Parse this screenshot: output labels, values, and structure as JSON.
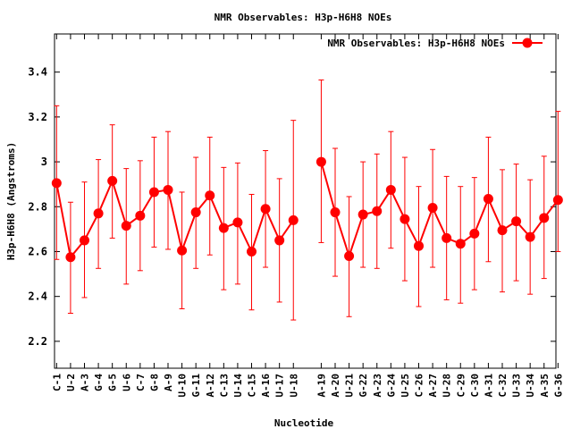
{
  "chart_data": {
    "type": "line",
    "title": "NMR Observables: H3p-H6H8 NOEs",
    "xlabel": "Nucleotide",
    "ylabel": "H3p-H6H8 (Angstroms)",
    "ylim": [
      2.08,
      3.57
    ],
    "yticks": [
      2.2,
      2.4,
      2.6,
      2.8,
      3,
      3.2,
      3.4
    ],
    "ytick_labels": [
      "2.2",
      "2.4",
      "2.6",
      "2.8",
      "3",
      "3.2",
      "3.4"
    ],
    "xlim": [
      0.85,
      36.85
    ],
    "grid": false,
    "legend_position": "top-right",
    "categories": [
      "C-1",
      "U-2",
      "A-3",
      "G-4",
      "G-5",
      "U-6",
      "C-7",
      "G-8",
      "A-9",
      "U-10",
      "G-11",
      "A-12",
      "C-13",
      "U-14",
      "C-15",
      "A-16",
      "U-17",
      "U-18",
      "A-19",
      "A-20",
      "U-21",
      "G-22",
      "A-23",
      "G-24",
      "U-25",
      "C-26",
      "A-27",
      "U-28",
      "C-29",
      "C-30",
      "A-31",
      "C-32",
      "U-33",
      "U-34",
      "A-35",
      "G-36"
    ],
    "x": [
      1,
      2,
      3,
      4,
      5,
      6,
      7,
      8,
      9,
      10,
      11,
      12,
      13,
      14,
      15,
      16,
      17,
      18,
      20,
      21,
      22,
      23,
      24,
      25,
      26,
      27,
      28,
      29,
      30,
      31,
      32,
      33,
      34,
      35,
      36,
      37
    ],
    "series": [
      {
        "name": "NMR Observables: H3p-H6H8 NOEs",
        "color": "#ff0000",
        "segments": [
          [
            0,
            17
          ],
          [
            18,
            35
          ]
        ],
        "values": [
          2.905,
          2.575,
          2.65,
          2.77,
          2.915,
          2.715,
          2.76,
          2.865,
          2.875,
          2.605,
          2.775,
          2.85,
          2.705,
          2.73,
          2.6,
          2.79,
          2.65,
          2.74,
          3.0,
          2.775,
          2.58,
          2.765,
          2.78,
          2.875,
          2.745,
          2.625,
          2.795,
          2.66,
          2.635,
          2.68,
          2.835,
          2.695,
          2.735,
          2.665,
          2.75,
          2.83
        ],
        "err_low": [
          2.565,
          2.325,
          2.395,
          2.525,
          2.66,
          2.455,
          2.515,
          2.62,
          2.61,
          2.345,
          2.525,
          2.585,
          2.43,
          2.455,
          2.34,
          2.53,
          2.375,
          2.295,
          2.64,
          2.49,
          2.31,
          2.53,
          2.525,
          2.615,
          2.47,
          2.355,
          2.53,
          2.385,
          2.37,
          2.43,
          2.555,
          2.42,
          2.47,
          2.41,
          2.48,
          2.6
        ],
        "err_high": [
          3.25,
          2.82,
          2.91,
          3.01,
          3.165,
          2.97,
          3.005,
          3.11,
          3.135,
          2.865,
          3.02,
          3.11,
          2.975,
          2.995,
          2.855,
          3.05,
          2.925,
          3.185,
          3.365,
          3.06,
          2.845,
          3.0,
          3.035,
          3.135,
          3.02,
          2.89,
          3.055,
          2.935,
          2.89,
          2.93,
          3.11,
          2.965,
          2.99,
          2.92,
          3.025,
          3.225
        ]
      }
    ]
  },
  "colors": {
    "series": "#ff0000",
    "axes": "#000000",
    "background": "#ffffff"
  }
}
